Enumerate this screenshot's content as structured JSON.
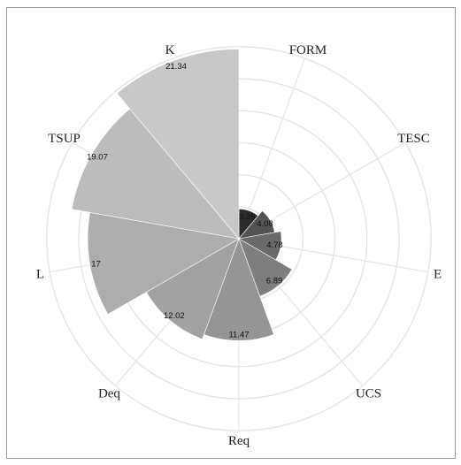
{
  "chart_data": {
    "type": "polar-bar",
    "title": "",
    "categories": [
      "FORM",
      "TESC",
      "E",
      "UCS",
      "Req",
      "Deq",
      "L",
      "TSUP",
      "K"
    ],
    "values": [
      3.35,
      4.08,
      4.78,
      6.89,
      11.47,
      12.02,
      17,
      19.07,
      21.34
    ],
    "value_labels": [
      "3.35",
      "4.08",
      "4.78",
      "6.89",
      "11.47",
      "12.02",
      "17",
      "19.07",
      "21.34"
    ],
    "colors": [
      "#2b2b2b",
      "#545454",
      "#6a6a6a",
      "#7e7e7e",
      "#959595",
      "#a2a2a2",
      "#adadad",
      "#bcbcbc",
      "#c8c8c8"
    ],
    "grid": true,
    "legend": "none"
  }
}
